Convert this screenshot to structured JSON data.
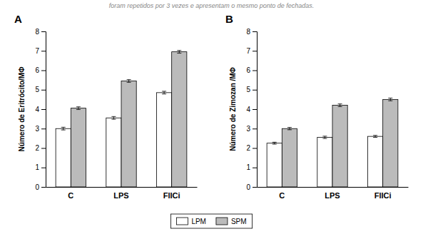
{
  "chart_data": [
    {
      "type": "bar",
      "title": "A",
      "annotation": "foram repetidos por 3 vezes e apresentam o mesmo ponto de fechadas.",
      "categories": [
        "C",
        "LPS",
        "FlICi"
      ],
      "series": [
        {
          "name": "LPM",
          "color": "white",
          "values": [
            3.0,
            3.55,
            4.85
          ],
          "errors": [
            0.07,
            0.07,
            0.07
          ]
        },
        {
          "name": "SPM",
          "color": "#BBBBBB",
          "values": [
            4.05,
            5.45,
            6.95
          ],
          "errors": [
            0.07,
            0.07,
            0.07
          ]
        }
      ],
      "y_label": "Número de Eritrócito/MΦ",
      "ylim": [
        0,
        8
      ],
      "yticks": [
        0,
        1,
        2,
        3,
        4,
        5,
        6,
        7,
        8
      ],
      "grid": false,
      "legend": "bottom"
    },
    {
      "type": "bar",
      "title": "B",
      "categories": [
        "C",
        "LPS",
        "FlICi"
      ],
      "series": [
        {
          "name": "LPM",
          "color": "white",
          "values": [
            2.25,
            2.55,
            2.6
          ],
          "errors": [
            0.05,
            0.06,
            0.05
          ]
        },
        {
          "name": "SPM",
          "color": "#BBBBBB",
          "values": [
            3.0,
            4.2,
            4.5
          ],
          "errors": [
            0.06,
            0.07,
            0.07
          ]
        }
      ],
      "y_label": "Número de Zimozan /MΦ",
      "ylim": [
        0,
        8
      ],
      "yticks": [
        0,
        1,
        2,
        3,
        4,
        5,
        6,
        7,
        8
      ],
      "grid": false
    }
  ]
}
